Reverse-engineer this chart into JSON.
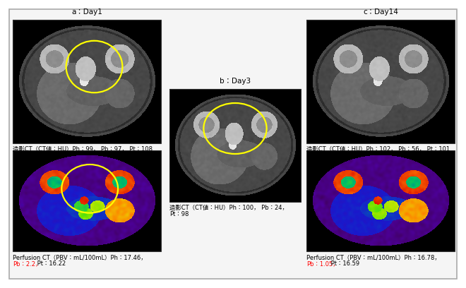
{
  "figure_bg": "#ffffff",
  "panel_bg": "#f0f0f0",
  "title_label_a": "a：Day1",
  "title_label_b": "b：Day3",
  "title_label_c": "c：Day14",
  "caption_a_top": "造影CT（CT値：HU）Ph：99， Pb：97， Pt：108",
  "caption_b_mid1": "造影CT（CT値：HU）Ph：100， Pb：24，",
  "caption_b_mid2": "Pt：98",
  "caption_c_top": "造影CT（CT値：HU）Ph：102， Pb：56， Pt：101",
  "caption_a_bot1": "Perfusion CT（PBV：mL/100mL）Ph：17.46，",
  "caption_a_bot2_red": "Pb：2.2，",
  "caption_a_bot3": " Pt：16.22",
  "caption_c_bot1": "Perfusion CT（PBV：mL/100mL）Ph：16.78，",
  "caption_c_bot2_red": "Pb：1.05，",
  "caption_c_bot3": " Pt：16.59",
  "ellipse_color": "#ffff00",
  "red_color": "#ff0000",
  "font_size_label": 7.5,
  "font_size_caption": 6.0
}
